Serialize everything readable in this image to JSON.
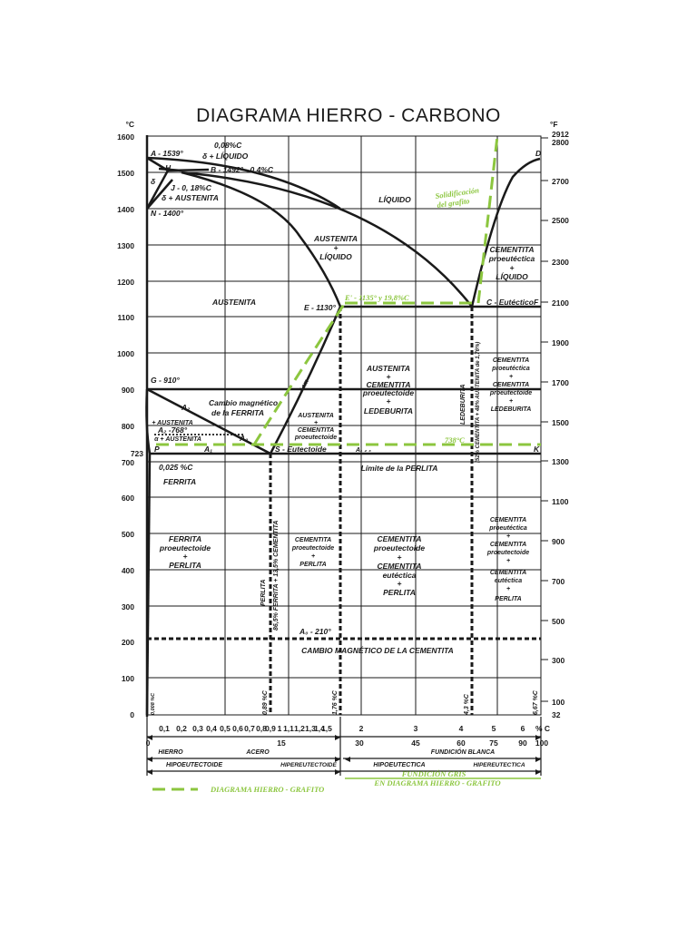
{
  "title": "DIAGRAMA HIERRO - CARBONO",
  "axes": {
    "left_unit": "°C",
    "right_unit": "°F",
    "bottom_unit": "% C",
    "left_ticks": [
      "1600",
      "1500",
      "1400",
      "1300",
      "1200",
      "1100",
      "1000",
      "900",
      "800",
      "700",
      "600",
      "500",
      "400",
      "300",
      "200",
      "100",
      "0"
    ],
    "special_left_tick": "723",
    "right_ticks": [
      "2912",
      "2800",
      "2700",
      "2500",
      "2300",
      "2100",
      "1900",
      "1700",
      "1500",
      "1300",
      "1100",
      "900",
      "700",
      "500",
      "300",
      "100",
      "32"
    ],
    "bottom_ticks": [
      "0,1",
      "0,2",
      "0,3",
      "0,4",
      "0,5",
      "0,6",
      "0,7",
      "0,8",
      "0,9",
      "1",
      "1,1",
      "1,2",
      "1,3",
      "1,4",
      "1,5",
      "2",
      "3",
      "4",
      "5",
      "6"
    ],
    "bottom_pct_ticks": [
      "0",
      "15",
      "30",
      "45",
      "60",
      "75",
      "90",
      "100"
    ]
  },
  "points": {
    "A": "A - 1539°",
    "H": "H",
    "B": "B - 1492° - 0,4%C",
    "J": "J - 0, 18%C",
    "N": "N - 1400°",
    "G": "G - 910°",
    "E": "E - 1130°",
    "C": "C - Eutéctico",
    "F": "F",
    "D": "D",
    "S": "S - Eutectoide",
    "P": "P",
    "K": "K",
    "A2": "A₂",
    "A2_768": "A₂ -768°",
    "A1": "A₁",
    "A1_dash": "A₁ ₂ ₃",
    "A3": "A₃",
    "Acm": "Acm",
    "A0": "A₀ - 210°"
  },
  "labels": {
    "c008": "0,08%C",
    "delta_liquido": "δ + LÍQUIDO",
    "delta": "δ",
    "delta_austenita": "δ + AUSTENITA",
    "liquido": "LÍQUIDO",
    "austenita_liquido": [
      "AUSTENITA",
      "+",
      "LÍQUIDO"
    ],
    "austenita": "AUSTENITA",
    "cementita_proeut_liquido": [
      "CEMENTITA",
      "proeutéctica",
      "+",
      "LÍQUIDO"
    ],
    "cambio_ferrita": [
      "Cambio magnético",
      "de la FERRITA"
    ],
    "ferrita_austenita": "+ AUSTENITA",
    "alpha_austenita": "α + AUSTENITA",
    "austenita_cementita": [
      "AUSTENITA",
      "+",
      "CEMENTITA",
      "proeutectoide"
    ],
    "austenita_cem_led": [
      "AUSTENITA",
      "+",
      "CEMENTITA",
      "proeutectoide",
      "+",
      "LEDEBURITA"
    ],
    "cem_led": [
      "CEMENTITA",
      "proeutéctica",
      "+",
      "CEMENTITA",
      "proeutectoide",
      "+",
      "LEDEBURITA"
    ],
    "c0025": "0,025 %C",
    "ferrita": "FERRITA",
    "limite_perlita": "Límite de la PERLITA",
    "ferrita_perlita": [
      "FERRITA",
      "proeutectoide",
      "+",
      "PERLITA"
    ],
    "cem_perlita": [
      "CEMENTITA",
      "proeutectoide",
      "+",
      "PERLITA"
    ],
    "cem_cem_perlita": [
      "CEMENTITA",
      "proeutectoide",
      "+",
      "CEMENTITA",
      "eutéctica",
      "+",
      "PERLITA"
    ],
    "cem_final": [
      "CEMENTITA",
      "proeutéctica",
      "+",
      "CEMENTITA",
      "proeutectoide",
      "+",
      "CEMENTITA",
      "eutéctica",
      "+",
      "PERLITA"
    ],
    "cambio_cementita": "CAMBIO MAGNÉTICO DE LA CEMENTITA",
    "perlita_vert": "PERLITA",
    "ferrita_cem_vert": "86,5% FERRITA + 13,5% CEMENTITA",
    "ledeburita_vert": "LEDEBURITA",
    "led_comp_vert": "(52% CEMENTITA + 48% AUSTENITA de 1,76%)",
    "c0008": "0,008 %C",
    "c089": "0,89 %C",
    "c176": "1,76 %C",
    "c43": "4,3 %C",
    "c667": "6,67 %C",
    "hierro": "HIERRO",
    "acero": "ACERO",
    "fundicion_blanca": "FUNDICIÓN BLANCA",
    "hipoeutectoide": "HIPOEUTECTOIDE",
    "hipereutectoide": "HIPEREUTECTOIDE",
    "hipoeutectica": "HIPOEUTECTICA",
    "hipereutectica": "HIPEREUTECTICA"
  },
  "green_labels": {
    "solidificacion": [
      "Solidificación",
      "del grafito"
    ],
    "e_prime": "E' - 1135° y 19,8%C",
    "t738": "738°C",
    "legend": "DIAGRAMA HIERRO - GRAFITO",
    "fundicion_gris": [
      "FUNDICIÓN GRIS",
      "EN DIAGRAMA HIERRO - GRAFITO"
    ]
  },
  "colors": {
    "line": "#1a1a1a",
    "grid": "#1a1a1a",
    "green": "#8cc63f"
  }
}
